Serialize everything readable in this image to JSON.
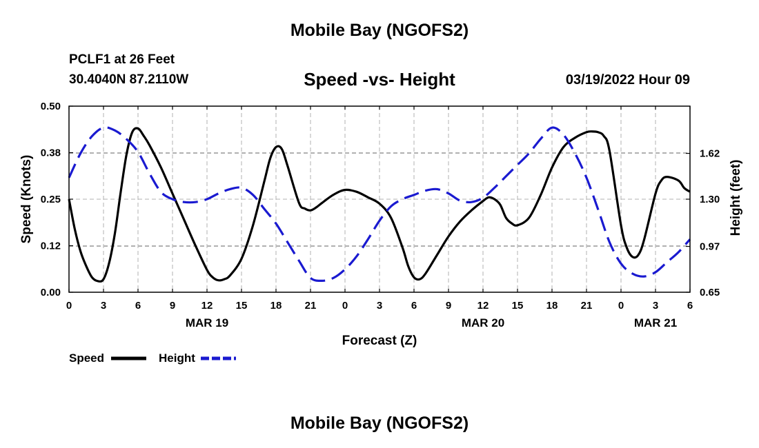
{
  "header": {
    "title": "Mobile Bay (NGOFS2)",
    "station": "PCLF1 at 26 Feet",
    "coords": "30.4040N  87.2110W",
    "chart_title": "Speed -vs- Height",
    "date": "03/19/2022 Hour 09"
  },
  "footer": {
    "title": "Mobile Bay (NGOFS2)"
  },
  "colors": {
    "speed": "#000000",
    "height": "#1a1ad0",
    "grid": "#b0b0b0"
  },
  "chart_data": {
    "type": "line",
    "title": "Speed -vs- Height",
    "xlabel": "Forecast (Z)",
    "ylabel": "Speed (Knots)",
    "y2label": "Height (feet)",
    "xlim": [
      0,
      54
    ],
    "ylim": [
      0,
      0.5
    ],
    "y2lim": [
      0.65,
      1.95
    ],
    "x_ticks": [
      0,
      3,
      6,
      9,
      12,
      15,
      18,
      21,
      24,
      27,
      30,
      33,
      36,
      39,
      42,
      45,
      48,
      51,
      54
    ],
    "x_tick_labels": [
      "0",
      "3",
      "6",
      "9",
      "12",
      "15",
      "18",
      "21",
      "0",
      "3",
      "6",
      "9",
      "12",
      "15",
      "18",
      "21",
      "0",
      "3",
      "6"
    ],
    "y_ticks": [
      0.0,
      0.125,
      0.25,
      0.375,
      0.5
    ],
    "y_tick_labels": [
      "0.00",
      "0.12",
      "0.25",
      "0.38",
      "0.50"
    ],
    "y2_ticks": [
      0.65,
      0.97,
      1.3,
      1.62
    ],
    "y2_tick_labels": [
      "0.65",
      "0.97",
      "1.30",
      "1.62"
    ],
    "day_labels": [
      {
        "x": 12,
        "label": "MAR 19"
      },
      {
        "x": 36,
        "label": "MAR 20"
      },
      {
        "x": 51,
        "label": "MAR 21"
      }
    ],
    "grid": true,
    "series": [
      {
        "name": "Speed",
        "axis": "left",
        "style": "solid",
        "x": [
          0,
          0.5,
          1,
          1.5,
          2,
          2.5,
          3,
          3.5,
          4,
          4.5,
          5,
          5.5,
          6,
          6.5,
          7,
          8,
          9,
          10,
          11,
          12,
          12.5,
          13,
          13.5,
          14,
          15,
          16,
          17,
          17.5,
          18,
          18.5,
          19,
          20,
          20.5,
          21,
          21.5,
          22,
          23,
          24,
          25,
          26,
          27,
          28,
          29,
          29.5,
          30,
          30.5,
          31,
          32,
          33,
          34,
          35,
          36,
          36.5,
          37,
          37.5,
          38,
          38.5,
          39,
          40,
          41,
          42,
          43,
          44,
          45,
          45.5,
          46,
          46.5,
          47,
          48,
          48.5,
          49,
          49.5,
          50,
          51,
          51.5,
          52,
          53,
          53.5,
          54
        ],
        "values": [
          0.25,
          0.17,
          0.11,
          0.07,
          0.04,
          0.03,
          0.035,
          0.08,
          0.16,
          0.27,
          0.37,
          0.43,
          0.44,
          0.42,
          0.395,
          0.335,
          0.265,
          0.195,
          0.125,
          0.06,
          0.04,
          0.032,
          0.035,
          0.045,
          0.09,
          0.18,
          0.3,
          0.36,
          0.39,
          0.385,
          0.34,
          0.24,
          0.225,
          0.22,
          0.228,
          0.24,
          0.262,
          0.275,
          0.27,
          0.255,
          0.238,
          0.2,
          0.12,
          0.07,
          0.04,
          0.035,
          0.05,
          0.1,
          0.15,
          0.19,
          0.22,
          0.245,
          0.255,
          0.25,
          0.235,
          0.2,
          0.185,
          0.18,
          0.2,
          0.26,
          0.335,
          0.39,
          0.415,
          0.43,
          0.432,
          0.43,
          0.42,
          0.38,
          0.18,
          0.12,
          0.095,
          0.1,
          0.14,
          0.265,
          0.3,
          0.31,
          0.3,
          0.28,
          0.27
        ]
      },
      {
        "name": "Height",
        "axis": "right",
        "style": "dashed",
        "x": [
          0,
          1,
          2,
          3,
          4,
          5,
          6,
          7,
          8,
          9,
          10,
          11,
          12,
          13,
          14,
          15,
          16,
          17,
          18,
          19,
          20,
          21,
          22,
          23,
          24,
          25,
          26,
          27,
          28,
          29,
          30,
          31,
          32,
          33,
          34,
          35,
          36,
          37,
          38,
          39,
          40,
          41,
          42,
          43,
          44,
          45,
          46,
          47,
          48,
          49,
          50,
          51,
          52,
          53,
          54
        ],
        "values": [
          1.45,
          1.62,
          1.74,
          1.8,
          1.78,
          1.72,
          1.63,
          1.48,
          1.35,
          1.3,
          1.28,
          1.28,
          1.3,
          1.34,
          1.37,
          1.38,
          1.33,
          1.23,
          1.13,
          1.0,
          0.87,
          0.75,
          0.73,
          0.75,
          0.81,
          0.9,
          1.02,
          1.15,
          1.25,
          1.3,
          1.33,
          1.36,
          1.37,
          1.34,
          1.29,
          1.28,
          1.31,
          1.38,
          1.46,
          1.54,
          1.62,
          1.72,
          1.8,
          1.75,
          1.62,
          1.45,
          1.23,
          1.0,
          0.85,
          0.78,
          0.76,
          0.79,
          0.86,
          0.93,
          1.02
        ]
      }
    ],
    "legend": [
      "Speed",
      "Height"
    ],
    "legend_position": "bottom-left"
  }
}
